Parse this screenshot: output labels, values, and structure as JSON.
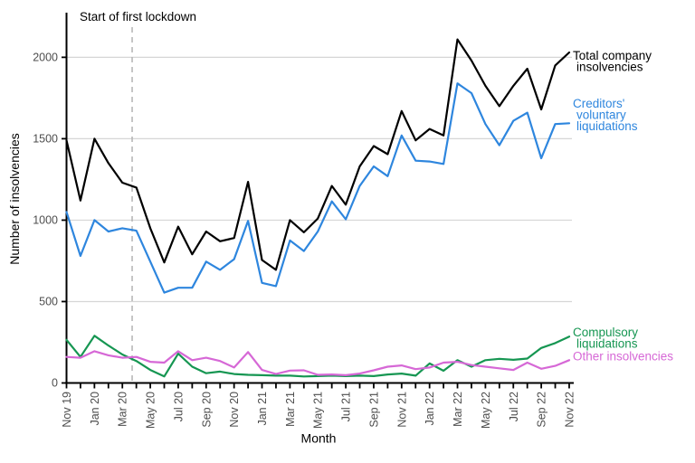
{
  "chart_data": {
    "type": "line",
    "title": "",
    "xlabel": "Month",
    "ylabel": "Number of insolvencies",
    "ylim": [
      0,
      2270
    ],
    "yticks": [
      0,
      500,
      1000,
      1500,
      2000
    ],
    "grid": "horizontal-only",
    "legend_position": "right-direct-labels",
    "x_tick_label_rotation": -90,
    "x_tick_label_every": 2,
    "categories": [
      "Nov 19",
      "Dec 19",
      "Jan 20",
      "Feb 20",
      "Mar 20",
      "Apr 20",
      "May 20",
      "Jun 20",
      "Jul 20",
      "Aug 20",
      "Sep 20",
      "Oct 20",
      "Nov 20",
      "Dec 20",
      "Jan 21",
      "Feb 21",
      "Mar 21",
      "Apr 21",
      "May 21",
      "Jun 21",
      "Jul 21",
      "Aug 21",
      "Sep 21",
      "Oct 21",
      "Nov 21",
      "Dec 21",
      "Jan 22",
      "Feb 22",
      "Mar 22",
      "Apr 22",
      "May 22",
      "Jun 22",
      "Jul 22",
      "Aug 22",
      "Sep 22",
      "Oct 22",
      "Nov 22"
    ],
    "series": [
      {
        "name": "Total company insolvencies",
        "label_lines": [
          "Total company",
          "insolvencies"
        ],
        "color": "#000000",
        "values": [
          1490,
          1120,
          1500,
          1350,
          1230,
          1200,
          950,
          740,
          960,
          790,
          930,
          870,
          890,
          1235,
          755,
          695,
          1000,
          925,
          1010,
          1210,
          1095,
          1330,
          1455,
          1405,
          1670,
          1490,
          1560,
          1520,
          2110,
          1980,
          1825,
          1700,
          1825,
          1930,
          1680,
          1950,
          2030
        ]
      },
      {
        "name": "Creditors' voluntary liquidations",
        "label_lines": [
          "Creditors'",
          "voluntary",
          "liquidations"
        ],
        "color": "#2e86de",
        "values": [
          1050,
          780,
          1000,
          930,
          950,
          935,
          745,
          555,
          585,
          585,
          745,
          695,
          760,
          995,
          615,
          595,
          875,
          810,
          930,
          1115,
          1005,
          1210,
          1330,
          1270,
          1520,
          1365,
          1360,
          1345,
          1840,
          1780,
          1590,
          1460,
          1610,
          1660,
          1380,
          1590,
          1595
        ]
      },
      {
        "name": "Compulsory liquidations",
        "label_lines": [
          "Compulsory",
          "liquidations"
        ],
        "color": "#169652",
        "values": [
          265,
          160,
          290,
          230,
          175,
          135,
          80,
          40,
          180,
          100,
          60,
          70,
          55,
          50,
          48,
          45,
          45,
          40,
          42,
          45,
          42,
          45,
          42,
          52,
          58,
          45,
          120,
          75,
          140,
          100,
          140,
          148,
          142,
          150,
          215,
          245,
          285
        ]
      },
      {
        "name": "Other insolvencies",
        "label_lines": [
          "Other insolvencies"
        ],
        "color": "#d668d6",
        "values": [
          160,
          155,
          195,
          170,
          155,
          160,
          130,
          125,
          195,
          140,
          155,
          135,
          95,
          190,
          80,
          55,
          76,
          78,
          50,
          52,
          48,
          58,
          78,
          100,
          108,
          85,
          95,
          125,
          130,
          110,
          100,
          90,
          80,
          125,
          87,
          105,
          140
        ]
      }
    ],
    "annotation": {
      "text": "Start of first lockdown",
      "x_index": 4.7,
      "line_style": "dashed",
      "line_color": "#b3b3b3"
    },
    "style": {
      "grid_color": "#d6d6d6",
      "axis_color": "#000000",
      "tick_label_color": "#4d4d4d",
      "background": "#ffffff"
    }
  }
}
